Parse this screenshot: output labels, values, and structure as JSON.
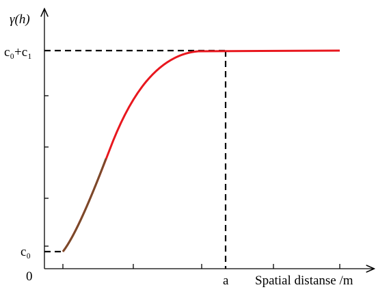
{
  "diagram": {
    "y_axis_label": "γ(h)",
    "y_labels": {
      "sill": "c₀+c₁",
      "nugget": "c₀",
      "origin": "0"
    },
    "x_labels": {
      "range": "a",
      "axis_title": "Spatial distanse /m"
    }
  }
}
